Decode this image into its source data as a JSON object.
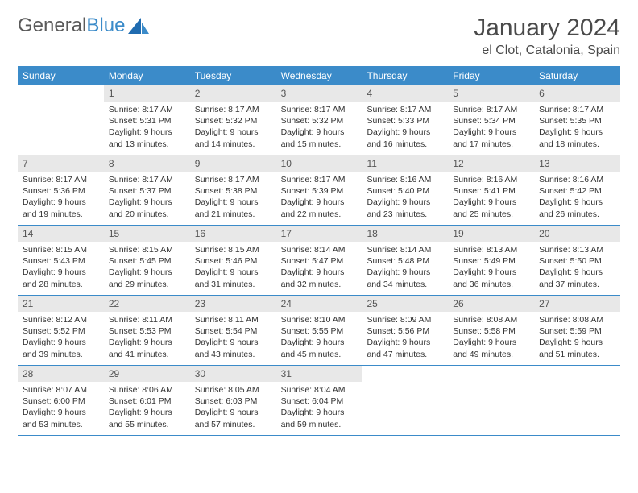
{
  "logo": {
    "text1": "General",
    "text2": "Blue"
  },
  "title": "January 2024",
  "location": "el Clot, Catalonia, Spain",
  "colors": {
    "header_bar": "#3b8bc9",
    "daynum_bg": "#e8e8e8",
    "text": "#333333",
    "title_text": "#4a4a4a",
    "week_divider": "#3b8bc9"
  },
  "weekdays": [
    "Sunday",
    "Monday",
    "Tuesday",
    "Wednesday",
    "Thursday",
    "Friday",
    "Saturday"
  ],
  "weeks": [
    [
      {
        "n": "",
        "sr": "",
        "ss": "",
        "dl": ""
      },
      {
        "n": "1",
        "sr": "Sunrise: 8:17 AM",
        "ss": "Sunset: 5:31 PM",
        "dl": "Daylight: 9 hours and 13 minutes."
      },
      {
        "n": "2",
        "sr": "Sunrise: 8:17 AM",
        "ss": "Sunset: 5:32 PM",
        "dl": "Daylight: 9 hours and 14 minutes."
      },
      {
        "n": "3",
        "sr": "Sunrise: 8:17 AM",
        "ss": "Sunset: 5:32 PM",
        "dl": "Daylight: 9 hours and 15 minutes."
      },
      {
        "n": "4",
        "sr": "Sunrise: 8:17 AM",
        "ss": "Sunset: 5:33 PM",
        "dl": "Daylight: 9 hours and 16 minutes."
      },
      {
        "n": "5",
        "sr": "Sunrise: 8:17 AM",
        "ss": "Sunset: 5:34 PM",
        "dl": "Daylight: 9 hours and 17 minutes."
      },
      {
        "n": "6",
        "sr": "Sunrise: 8:17 AM",
        "ss": "Sunset: 5:35 PM",
        "dl": "Daylight: 9 hours and 18 minutes."
      }
    ],
    [
      {
        "n": "7",
        "sr": "Sunrise: 8:17 AM",
        "ss": "Sunset: 5:36 PM",
        "dl": "Daylight: 9 hours and 19 minutes."
      },
      {
        "n": "8",
        "sr": "Sunrise: 8:17 AM",
        "ss": "Sunset: 5:37 PM",
        "dl": "Daylight: 9 hours and 20 minutes."
      },
      {
        "n": "9",
        "sr": "Sunrise: 8:17 AM",
        "ss": "Sunset: 5:38 PM",
        "dl": "Daylight: 9 hours and 21 minutes."
      },
      {
        "n": "10",
        "sr": "Sunrise: 8:17 AM",
        "ss": "Sunset: 5:39 PM",
        "dl": "Daylight: 9 hours and 22 minutes."
      },
      {
        "n": "11",
        "sr": "Sunrise: 8:16 AM",
        "ss": "Sunset: 5:40 PM",
        "dl": "Daylight: 9 hours and 23 minutes."
      },
      {
        "n": "12",
        "sr": "Sunrise: 8:16 AM",
        "ss": "Sunset: 5:41 PM",
        "dl": "Daylight: 9 hours and 25 minutes."
      },
      {
        "n": "13",
        "sr": "Sunrise: 8:16 AM",
        "ss": "Sunset: 5:42 PM",
        "dl": "Daylight: 9 hours and 26 minutes."
      }
    ],
    [
      {
        "n": "14",
        "sr": "Sunrise: 8:15 AM",
        "ss": "Sunset: 5:43 PM",
        "dl": "Daylight: 9 hours and 28 minutes."
      },
      {
        "n": "15",
        "sr": "Sunrise: 8:15 AM",
        "ss": "Sunset: 5:45 PM",
        "dl": "Daylight: 9 hours and 29 minutes."
      },
      {
        "n": "16",
        "sr": "Sunrise: 8:15 AM",
        "ss": "Sunset: 5:46 PM",
        "dl": "Daylight: 9 hours and 31 minutes."
      },
      {
        "n": "17",
        "sr": "Sunrise: 8:14 AM",
        "ss": "Sunset: 5:47 PM",
        "dl": "Daylight: 9 hours and 32 minutes."
      },
      {
        "n": "18",
        "sr": "Sunrise: 8:14 AM",
        "ss": "Sunset: 5:48 PM",
        "dl": "Daylight: 9 hours and 34 minutes."
      },
      {
        "n": "19",
        "sr": "Sunrise: 8:13 AM",
        "ss": "Sunset: 5:49 PM",
        "dl": "Daylight: 9 hours and 36 minutes."
      },
      {
        "n": "20",
        "sr": "Sunrise: 8:13 AM",
        "ss": "Sunset: 5:50 PM",
        "dl": "Daylight: 9 hours and 37 minutes."
      }
    ],
    [
      {
        "n": "21",
        "sr": "Sunrise: 8:12 AM",
        "ss": "Sunset: 5:52 PM",
        "dl": "Daylight: 9 hours and 39 minutes."
      },
      {
        "n": "22",
        "sr": "Sunrise: 8:11 AM",
        "ss": "Sunset: 5:53 PM",
        "dl": "Daylight: 9 hours and 41 minutes."
      },
      {
        "n": "23",
        "sr": "Sunrise: 8:11 AM",
        "ss": "Sunset: 5:54 PM",
        "dl": "Daylight: 9 hours and 43 minutes."
      },
      {
        "n": "24",
        "sr": "Sunrise: 8:10 AM",
        "ss": "Sunset: 5:55 PM",
        "dl": "Daylight: 9 hours and 45 minutes."
      },
      {
        "n": "25",
        "sr": "Sunrise: 8:09 AM",
        "ss": "Sunset: 5:56 PM",
        "dl": "Daylight: 9 hours and 47 minutes."
      },
      {
        "n": "26",
        "sr": "Sunrise: 8:08 AM",
        "ss": "Sunset: 5:58 PM",
        "dl": "Daylight: 9 hours and 49 minutes."
      },
      {
        "n": "27",
        "sr": "Sunrise: 8:08 AM",
        "ss": "Sunset: 5:59 PM",
        "dl": "Daylight: 9 hours and 51 minutes."
      }
    ],
    [
      {
        "n": "28",
        "sr": "Sunrise: 8:07 AM",
        "ss": "Sunset: 6:00 PM",
        "dl": "Daylight: 9 hours and 53 minutes."
      },
      {
        "n": "29",
        "sr": "Sunrise: 8:06 AM",
        "ss": "Sunset: 6:01 PM",
        "dl": "Daylight: 9 hours and 55 minutes."
      },
      {
        "n": "30",
        "sr": "Sunrise: 8:05 AM",
        "ss": "Sunset: 6:03 PM",
        "dl": "Daylight: 9 hours and 57 minutes."
      },
      {
        "n": "31",
        "sr": "Sunrise: 8:04 AM",
        "ss": "Sunset: 6:04 PM",
        "dl": "Daylight: 9 hours and 59 minutes."
      },
      {
        "n": "",
        "sr": "",
        "ss": "",
        "dl": ""
      },
      {
        "n": "",
        "sr": "",
        "ss": "",
        "dl": ""
      },
      {
        "n": "",
        "sr": "",
        "ss": "",
        "dl": ""
      }
    ]
  ]
}
